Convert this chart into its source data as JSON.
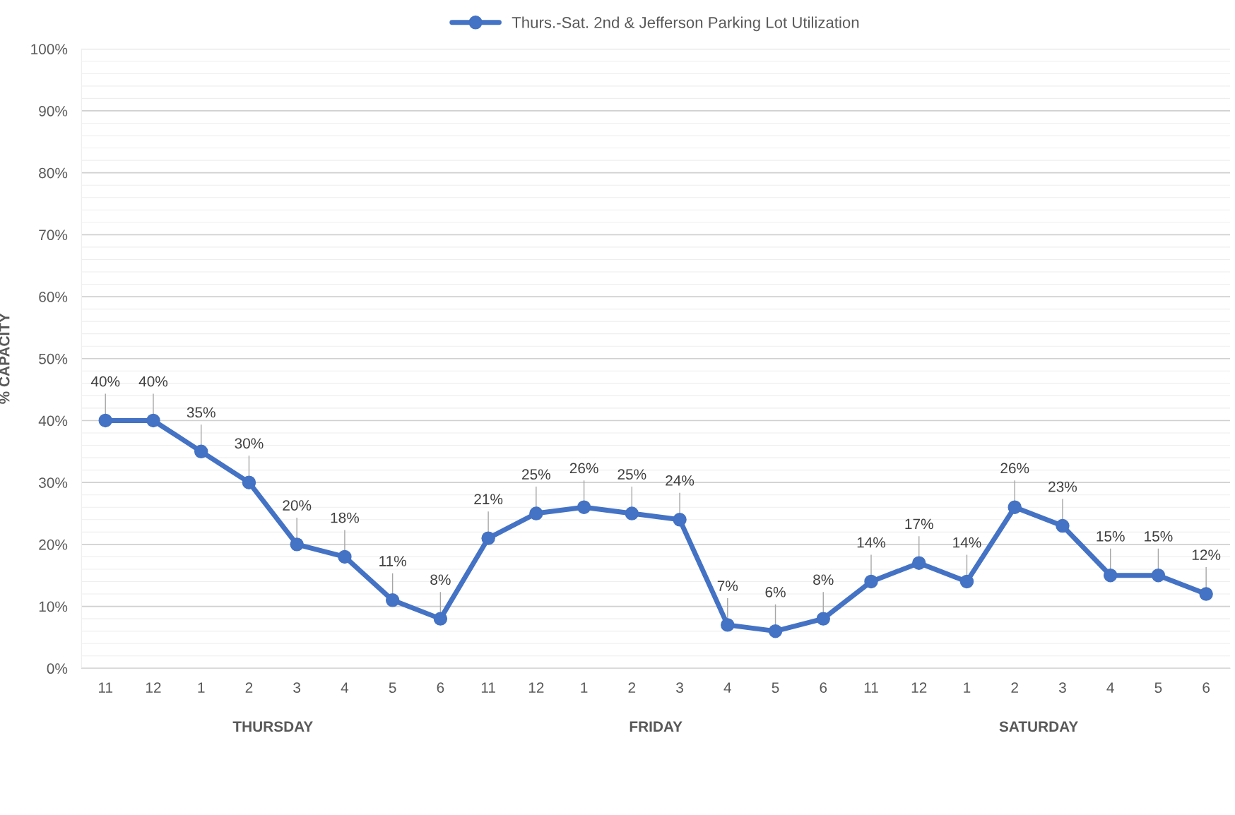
{
  "chart_data": {
    "type": "line",
    "ylabel": "% CAPACITY",
    "categories": [
      "11",
      "12",
      "1",
      "2",
      "3",
      "4",
      "5",
      "6",
      "11",
      "12",
      "1",
      "2",
      "3",
      "4",
      "5",
      "6",
      "11",
      "12",
      "1",
      "2",
      "3",
      "4",
      "5",
      "6"
    ],
    "series": [
      {
        "name": "Thurs.-Sat. 2nd & Jefferson Parking Lot Utilization",
        "color": "#4472c4",
        "values": [
          40,
          40,
          35,
          30,
          20,
          18,
          11,
          8,
          21,
          25,
          26,
          25,
          24,
          7,
          6,
          8,
          14,
          17,
          14,
          26,
          23,
          15,
          15,
          12
        ],
        "value_labels": [
          "40%",
          "40%",
          "35%",
          "30%",
          "20%",
          "18%",
          "11%",
          "8%",
          "21%",
          "25%",
          "26%",
          "25%",
          "24%",
          "7%",
          "6%",
          "8%",
          "14%",
          "17%",
          "14%",
          "26%",
          "23%",
          "15%",
          "15%",
          "12%"
        ]
      }
    ],
    "ylim": [
      0,
      100
    ],
    "yticks": [
      {
        "value": 0,
        "label": "0%"
      },
      {
        "value": 10,
        "label": "10%"
      },
      {
        "value": 20,
        "label": "20%"
      },
      {
        "value": 30,
        "label": "30%"
      },
      {
        "value": 40,
        "label": "40%"
      },
      {
        "value": 50,
        "label": "50%"
      },
      {
        "value": 60,
        "label": "60%"
      },
      {
        "value": 70,
        "label": "70%"
      },
      {
        "value": 80,
        "label": "80%"
      },
      {
        "value": 90,
        "label": "90%"
      },
      {
        "value": 100,
        "label": "100%"
      }
    ],
    "annotations": [
      "THURSDAY",
      "FRIDAY",
      "SATURDAY"
    ],
    "grid": "y",
    "legend": "top",
    "marker": "circle",
    "line_style": "solid"
  }
}
